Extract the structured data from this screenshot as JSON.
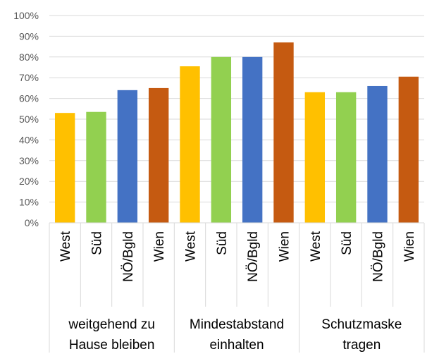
{
  "chart_data": {
    "type": "bar",
    "groups": [
      {
        "label_lines": [
          "weitgehend zu",
          "Hause bleiben"
        ],
        "categories": [
          "West",
          "Süd",
          "NÖ/Bgld",
          "Wien"
        ],
        "values": [
          53,
          53.5,
          64,
          65
        ]
      },
      {
        "label_lines": [
          "Mindestabstand",
          "einhalten"
        ],
        "categories": [
          "West",
          "Süd",
          "NÖ/Bgld",
          "Wien"
        ],
        "values": [
          75.5,
          80,
          80,
          87
        ]
      },
      {
        "label_lines": [
          "Schutzmaske",
          "tragen"
        ],
        "categories": [
          "West",
          "Süd",
          "NÖ/Bgld",
          "Wien"
        ],
        "values": [
          63,
          63,
          66,
          70.5
        ]
      }
    ],
    "colors": {
      "West": "#FFC000",
      "Süd": "#92D050",
      "NÖ/Bgld": "#4472C4",
      "Wien": "#C55A11"
    },
    "y_ticks": [
      "0%",
      "10%",
      "20%",
      "30%",
      "40%",
      "50%",
      "60%",
      "70%",
      "80%",
      "90%",
      "100%"
    ],
    "ylim": [
      0,
      100
    ],
    "grid": true,
    "legend": "none"
  }
}
